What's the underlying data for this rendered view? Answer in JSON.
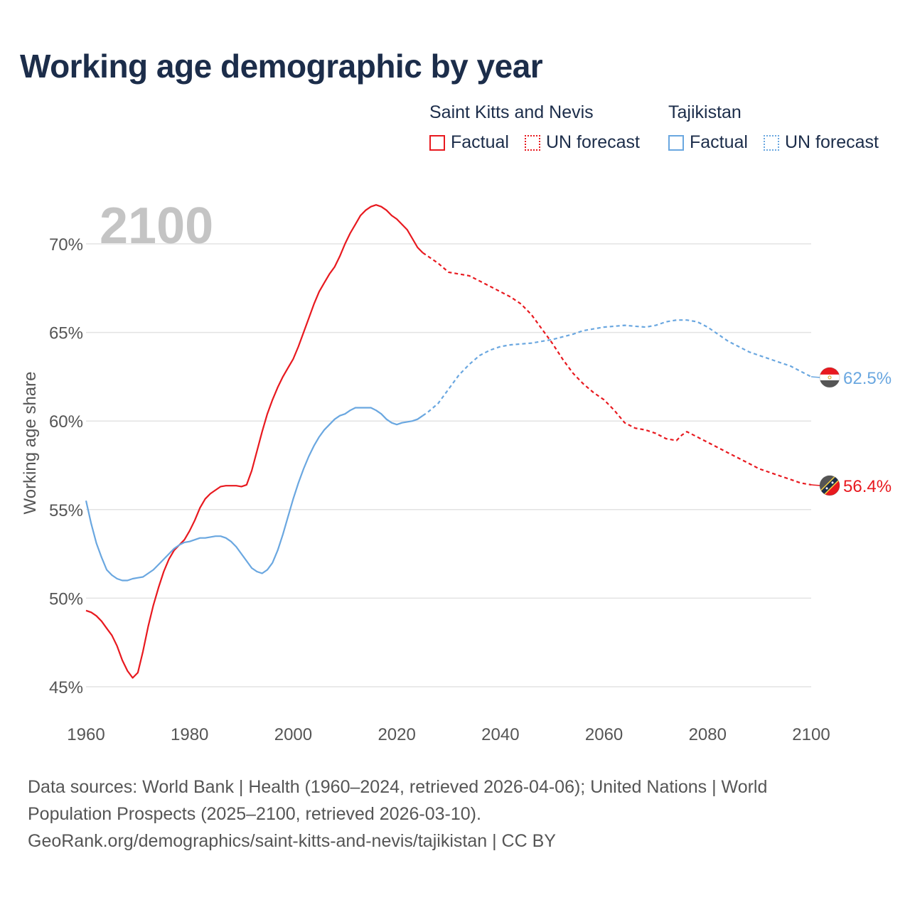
{
  "title": "Working age demographic by year",
  "legend": {
    "country_a": {
      "name": "Saint Kitts and Nevis",
      "factual": "Factual",
      "forecast": "UN forecast",
      "color": "#e8191f"
    },
    "country_b": {
      "name": "Tajikistan",
      "factual": "Factual",
      "forecast": "UN forecast",
      "color": "#6aa7e0"
    }
  },
  "year_watermark": "2100",
  "footer": {
    "line1": "Data sources: World Bank | Health (1960–2024, retrieved 2026-04-06); United Nations | World",
    "line2": "Population Prospects (2025–2100, retrieved 2026-03-10).",
    "line3": "GeoRank.org/demographics/saint-kitts-and-nevis/tajikistan | CC BY"
  },
  "chart_data": {
    "type": "line",
    "title": "Working age demographic by year",
    "xlabel": "",
    "ylabel": "Working age share",
    "xlim": [
      1960,
      2100
    ],
    "ylim": [
      44,
      72.5
    ],
    "x_ticks": [
      1960,
      1980,
      2000,
      2020,
      2040,
      2060,
      2080,
      2100
    ],
    "y_ticks": [
      {
        "value": 45,
        "label": "45%"
      },
      {
        "value": 50,
        "label": "50%"
      },
      {
        "value": 55,
        "label": "55%"
      },
      {
        "value": 60,
        "label": "60%"
      },
      {
        "value": 65,
        "label": "65%"
      },
      {
        "value": 70,
        "label": "70%"
      }
    ],
    "grid": "horizontal",
    "forecast_start_year": 2025,
    "series": [
      {
        "name": "Saint Kitts and Nevis",
        "color": "#e8191f",
        "end_label": "56.4%",
        "x": [
          1960,
          1961,
          1962,
          1963,
          1964,
          1965,
          1966,
          1967,
          1968,
          1969,
          1970,
          1971,
          1972,
          1973,
          1974,
          1975,
          1976,
          1977,
          1978,
          1979,
          1980,
          1981,
          1982,
          1983,
          1984,
          1985,
          1986,
          1987,
          1988,
          1989,
          1990,
          1991,
          1992,
          1993,
          1994,
          1995,
          1996,
          1997,
          1998,
          1999,
          2000,
          2001,
          2002,
          2003,
          2004,
          2005,
          2006,
          2007,
          2008,
          2009,
          2010,
          2011,
          2012,
          2013,
          2014,
          2015,
          2016,
          2017,
          2018,
          2019,
          2020,
          2021,
          2022,
          2023,
          2024,
          2025,
          2026,
          2028,
          2030,
          2032,
          2034,
          2036,
          2038,
          2040,
          2042,
          2044,
          2046,
          2048,
          2050,
          2052,
          2054,
          2056,
          2058,
          2060,
          2062,
          2064,
          2066,
          2068,
          2070,
          2072,
          2074,
          2075,
          2076,
          2078,
          2080,
          2082,
          2084,
          2086,
          2088,
          2090,
          2092,
          2094,
          2096,
          2098,
          2100
        ],
        "values": [
          49.3,
          49.2,
          49.0,
          48.7,
          48.3,
          47.9,
          47.3,
          46.5,
          45.9,
          45.5,
          45.8,
          47.0,
          48.4,
          49.6,
          50.6,
          51.5,
          52.2,
          52.7,
          53.0,
          53.3,
          53.8,
          54.4,
          55.1,
          55.6,
          55.9,
          56.1,
          56.3,
          56.35,
          56.35,
          56.35,
          56.3,
          56.4,
          57.2,
          58.3,
          59.4,
          60.4,
          61.2,
          61.9,
          62.5,
          63.0,
          63.5,
          64.2,
          65.0,
          65.8,
          66.6,
          67.3,
          67.8,
          68.3,
          68.7,
          69.3,
          70.0,
          70.6,
          71.1,
          71.6,
          71.9,
          72.1,
          72.2,
          72.1,
          71.9,
          71.6,
          71.4,
          71.1,
          70.8,
          70.3,
          69.8,
          69.5,
          69.3,
          68.9,
          68.4,
          68.3,
          68.2,
          67.9,
          67.6,
          67.3,
          67.0,
          66.6,
          66.0,
          65.2,
          64.4,
          63.5,
          62.7,
          62.1,
          61.6,
          61.2,
          60.6,
          59.9,
          59.6,
          59.5,
          59.3,
          59.0,
          58.9,
          59.2,
          59.4,
          59.1,
          58.8,
          58.5,
          58.2,
          57.9,
          57.6,
          57.3,
          57.1,
          56.9,
          56.7,
          56.5,
          56.4
        ]
      },
      {
        "name": "Tajikistan",
        "color": "#6aa7e0",
        "end_label": "62.5%",
        "x": [
          1960,
          1961,
          1962,
          1963,
          1964,
          1965,
          1966,
          1967,
          1968,
          1969,
          1970,
          1971,
          1972,
          1973,
          1974,
          1975,
          1976,
          1977,
          1978,
          1979,
          1980,
          1981,
          1982,
          1983,
          1984,
          1985,
          1986,
          1987,
          1988,
          1989,
          1990,
          1991,
          1992,
          1993,
          1994,
          1995,
          1996,
          1997,
          1998,
          1999,
          2000,
          2001,
          2002,
          2003,
          2004,
          2005,
          2006,
          2007,
          2008,
          2009,
          2010,
          2011,
          2012,
          2013,
          2014,
          2015,
          2016,
          2017,
          2018,
          2019,
          2020,
          2021,
          2022,
          2023,
          2024,
          2025,
          2026,
          2028,
          2030,
          2032,
          2034,
          2036,
          2038,
          2040,
          2042,
          2044,
          2046,
          2048,
          2050,
          2052,
          2054,
          2056,
          2058,
          2060,
          2062,
          2064,
          2066,
          2068,
          2070,
          2072,
          2074,
          2076,
          2078,
          2080,
          2082,
          2084,
          2086,
          2088,
          2090,
          2092,
          2094,
          2096,
          2098,
          2100
        ],
        "values": [
          55.5,
          54.2,
          53.1,
          52.3,
          51.6,
          51.3,
          51.1,
          51.0,
          51.0,
          51.1,
          51.15,
          51.2,
          51.4,
          51.6,
          51.9,
          52.2,
          52.5,
          52.8,
          53.0,
          53.15,
          53.2,
          53.3,
          53.4,
          53.4,
          53.45,
          53.5,
          53.5,
          53.4,
          53.2,
          52.9,
          52.5,
          52.1,
          51.7,
          51.5,
          51.4,
          51.6,
          52.0,
          52.7,
          53.6,
          54.6,
          55.6,
          56.5,
          57.3,
          58.0,
          58.6,
          59.1,
          59.5,
          59.8,
          60.1,
          60.3,
          60.4,
          60.6,
          60.75,
          60.75,
          60.75,
          60.75,
          60.6,
          60.4,
          60.1,
          59.9,
          59.8,
          59.9,
          59.95,
          60.0,
          60.1,
          60.3,
          60.5,
          61.0,
          61.8,
          62.6,
          63.2,
          63.7,
          64.0,
          64.2,
          64.3,
          64.35,
          64.4,
          64.5,
          64.6,
          64.75,
          64.9,
          65.1,
          65.2,
          65.3,
          65.35,
          65.4,
          65.35,
          65.3,
          65.4,
          65.6,
          65.7,
          65.7,
          65.6,
          65.3,
          64.9,
          64.5,
          64.2,
          63.9,
          63.7,
          63.5,
          63.3,
          63.1,
          62.8,
          62.5
        ]
      }
    ]
  }
}
